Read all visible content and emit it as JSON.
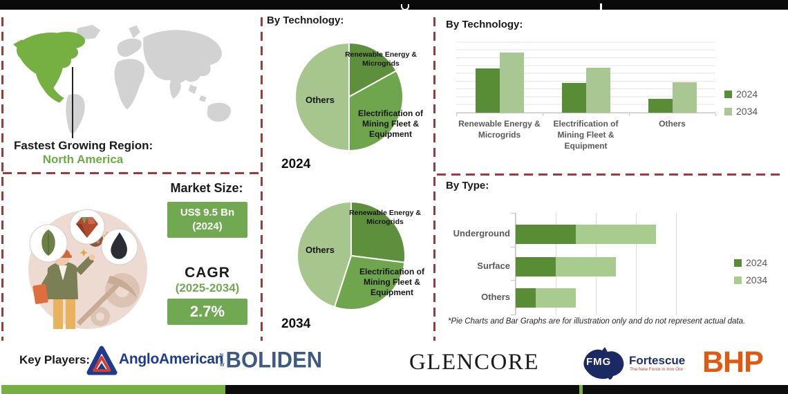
{
  "fastest_region": {
    "label": "Fastest Growing Region:",
    "value": "North America"
  },
  "market_size": {
    "label": "Market Size:",
    "value": "US$ 9.5 Bn",
    "year": "(2024)"
  },
  "cagr": {
    "label": "CAGR",
    "period": "(2025-2034)",
    "value": "2.7%"
  },
  "footnote": "*Pie Charts and Bar Graphs are for illustration only and do not represent actual data.",
  "key_players": {
    "label": "Key Players:",
    "anglo": "AngloAmerican",
    "boliden_new": "NEW",
    "boliden": "BOLIDEN",
    "glencore": "GLENCORE",
    "fmg_abbr": "FMG",
    "fortescue": "Fortescue",
    "fortescue_tagline": "The New Force in Iron Ore",
    "bhp": "BHP"
  },
  "colors": {
    "accent_green": "#70a952",
    "map_green": "#76b043",
    "region_text_green": "#6aad45",
    "dashed_red": "#9e3a3a",
    "series_2024": "#588c35",
    "series_2034": "#a9c793",
    "anglo_navy": "#1e3c8c",
    "boliden_blue": "#3e5a7c",
    "fmg_navy": "#1b2a63",
    "fortescue_red": "#c0392b",
    "bhp_orange": "#e4570f"
  },
  "chart_data": [
    {
      "type": "pie",
      "title": "By Technology:",
      "year": "2024",
      "slices": [
        {
          "label": "Renewable Energy & Microgrids",
          "value": 17,
          "color": "#5d8f3d"
        },
        {
          "label": "Electrification of Mining Fleet & Equipment",
          "value": 33,
          "color": "#6fa54c"
        },
        {
          "label": "Others",
          "value": 50,
          "color": "#a6c68e"
        }
      ]
    },
    {
      "type": "pie",
      "title": "By Technology:",
      "year": "2034",
      "slices": [
        {
          "label": "Renewable Energy & Microgrids",
          "value": 27,
          "color": "#5d8f3d"
        },
        {
          "label": "Electrification of Mining Fleet & Equipment",
          "value": 28,
          "color": "#6fa54c"
        },
        {
          "label": "Others",
          "value": 45,
          "color": "#a6c68e"
        }
      ]
    },
    {
      "type": "bar",
      "title": "By Technology:",
      "categories": [
        "Renewable Energy & Microgrids",
        "Electrification of Mining Fleet & Equipment",
        "Others"
      ],
      "series": [
        {
          "name": "2024",
          "color": "#588c35",
          "values": [
            57,
            38,
            18
          ]
        },
        {
          "name": "2034",
          "color": "#a9c793",
          "values": [
            77,
            58,
            39
          ]
        }
      ],
      "ylim": [
        0,
        93
      ],
      "grid_interval": 10,
      "legend_position": "right"
    },
    {
      "type": "stacked-hbar",
      "title": "By Type:",
      "categories": [
        "Underground",
        "Surface",
        "Others"
      ],
      "series": [
        {
          "name": "2024",
          "color": "#588c35",
          "values": [
            1.5,
            1.0,
            0.5
          ]
        },
        {
          "name": "2034",
          "color": "#a8cb8e",
          "values": [
            2.0,
            1.5,
            1.0
          ]
        }
      ],
      "xlim": [
        0,
        5
      ],
      "grid_interval": 1,
      "legend_position": "right"
    }
  ]
}
